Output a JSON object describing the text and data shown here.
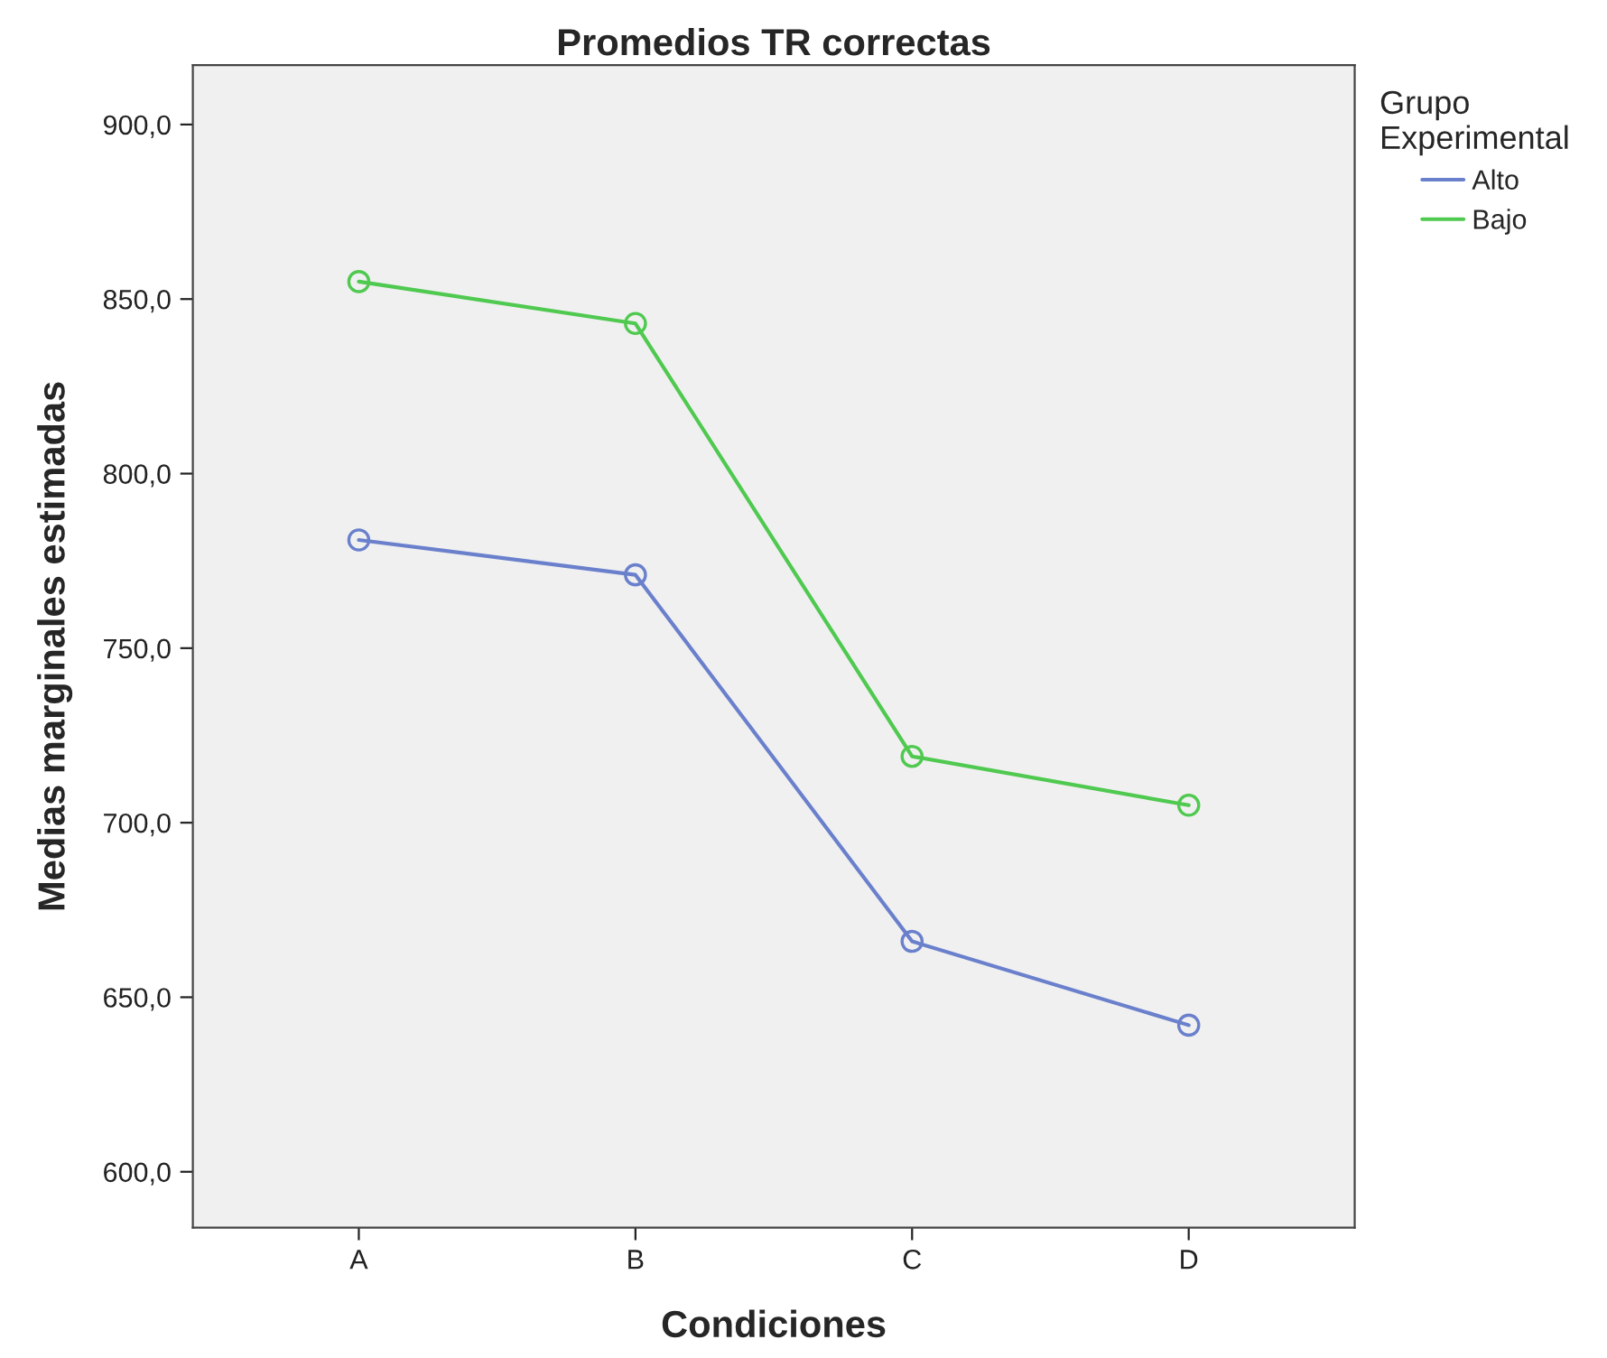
{
  "chart_data": {
    "type": "line",
    "title": "Promedios TR correctas",
    "xlabel": "Condiciones",
    "ylabel": "Medias marginales estimadas",
    "legend_title": "Grupo Experimental",
    "categories": [
      "A",
      "B",
      "C",
      "D"
    ],
    "series": [
      {
        "name": "Alto",
        "color": "#6a80cc",
        "values": [
          781,
          771,
          666,
          642
        ]
      },
      {
        "name": "Bajo",
        "color": "#4fc94f",
        "values": [
          855,
          843,
          719,
          705
        ]
      }
    ],
    "ylim": [
      584,
      917
    ],
    "yticks": [
      {
        "value": 600,
        "label": "600,0"
      },
      {
        "value": 650,
        "label": "650,0"
      },
      {
        "value": 700,
        "label": "700,0"
      },
      {
        "value": 750,
        "label": "750,0"
      },
      {
        "value": 800,
        "label": "800,0"
      },
      {
        "value": 850,
        "label": "850,0"
      },
      {
        "value": 900,
        "label": "900,0"
      }
    ],
    "grid": false,
    "legend": "top right",
    "marker": "circle",
    "line_style": "solid"
  }
}
